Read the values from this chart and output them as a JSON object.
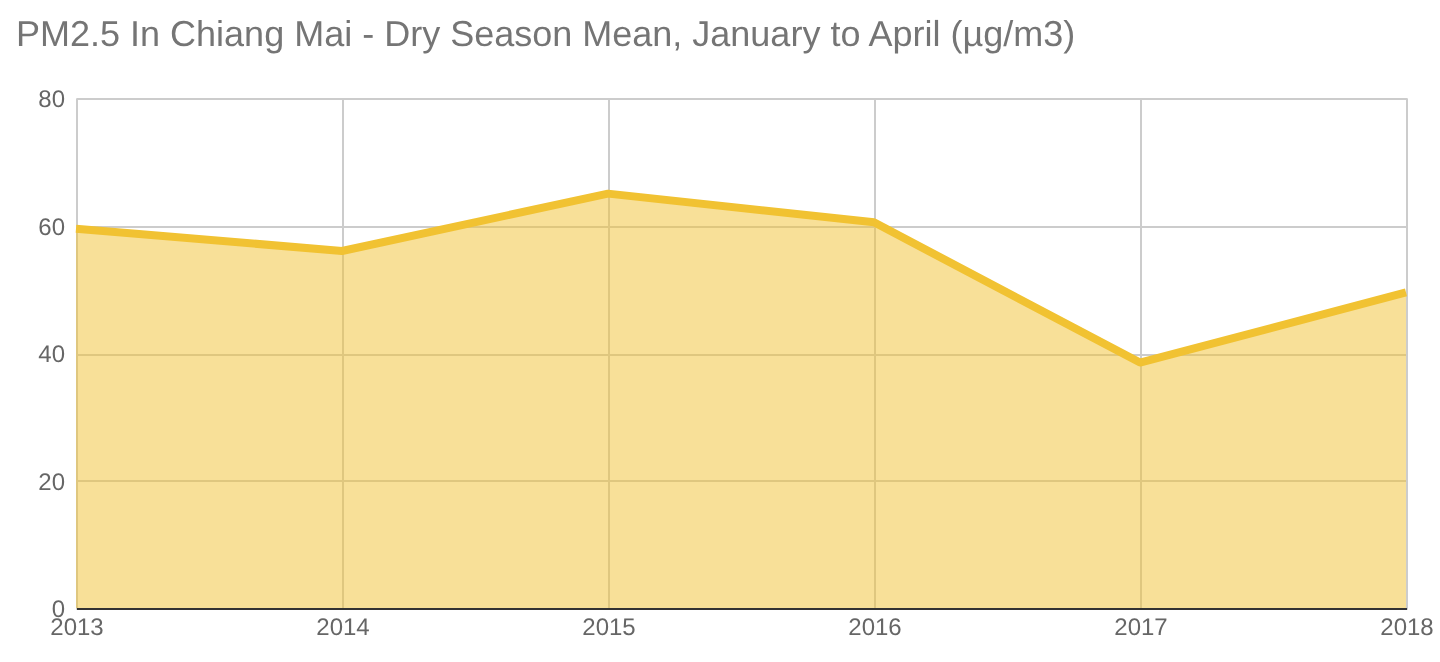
{
  "chart_data": {
    "type": "area",
    "title": "PM2.5 In Chiang Mai - Dry Season Mean, January to April (µg/m3)",
    "categories": [
      "2013",
      "2014",
      "2015",
      "2016",
      "2017",
      "2018"
    ],
    "series": [
      {
        "color": "#f1c232",
        "values": [
          59.5,
          56,
          65,
          60.5,
          38.5,
          49.5
        ]
      }
    ],
    "ylim": [
      0,
      80
    ],
    "yticks": [
      0,
      20,
      40,
      60,
      80
    ],
    "grid": true
  }
}
